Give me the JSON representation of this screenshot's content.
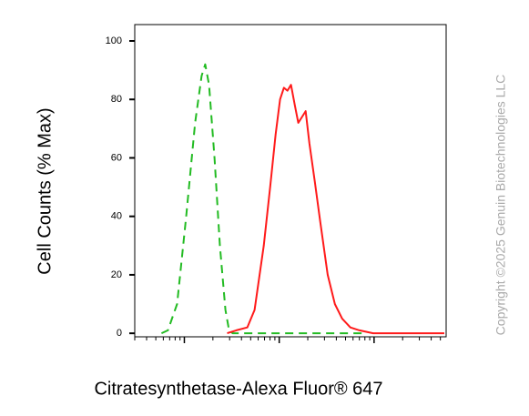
{
  "chart_data": {
    "type": "line",
    "y_label": "Cell Counts (% Max)",
    "x_label": "Citratesynthetase-Alexa Fluor® 647",
    "watermark": "Copyright ©2025 Genuin Biotechnologies LLC",
    "x_scale": "log",
    "xlim": [
      0.3,
      575
    ],
    "xticks": [
      1,
      10,
      100
    ],
    "x_minor_ticks": true,
    "ylim": [
      -1.2,
      105.6
    ],
    "yticks": [
      0,
      20,
      40,
      60,
      80,
      100
    ],
    "series": [
      {
        "color": "#22bb22",
        "dashed": true,
        "x": [
          0.575,
          0.671,
          0.838,
          1.045,
          1.3,
          1.52,
          1.66,
          1.82,
          2.08,
          2.37,
          2.71,
          2.96,
          3.23,
          78.4
        ],
        "values": [
          0,
          1,
          10,
          40,
          72,
          88,
          92,
          85,
          60,
          30,
          8,
          1,
          0,
          0
        ]
      },
      {
        "color": "#ff1a1a",
        "dashed": false,
        "x": [
          2.83,
          3.53,
          4.61,
          5.5,
          6.87,
          8.02,
          9.16,
          10.2,
          11.2,
          12.2,
          13.3,
          14.6,
          15.9,
          17.4,
          19.0,
          20.8,
          23.7,
          27.1,
          32.4,
          38.6,
          46.1,
          56.2,
          70.2,
          97.7,
          550
        ],
        "values": [
          0,
          1,
          2,
          8,
          30,
          50,
          68,
          80,
          84,
          83,
          85,
          78,
          72,
          74,
          76,
          65,
          52,
          38,
          20,
          10,
          5,
          2,
          1,
          0,
          0
        ]
      }
    ]
  }
}
